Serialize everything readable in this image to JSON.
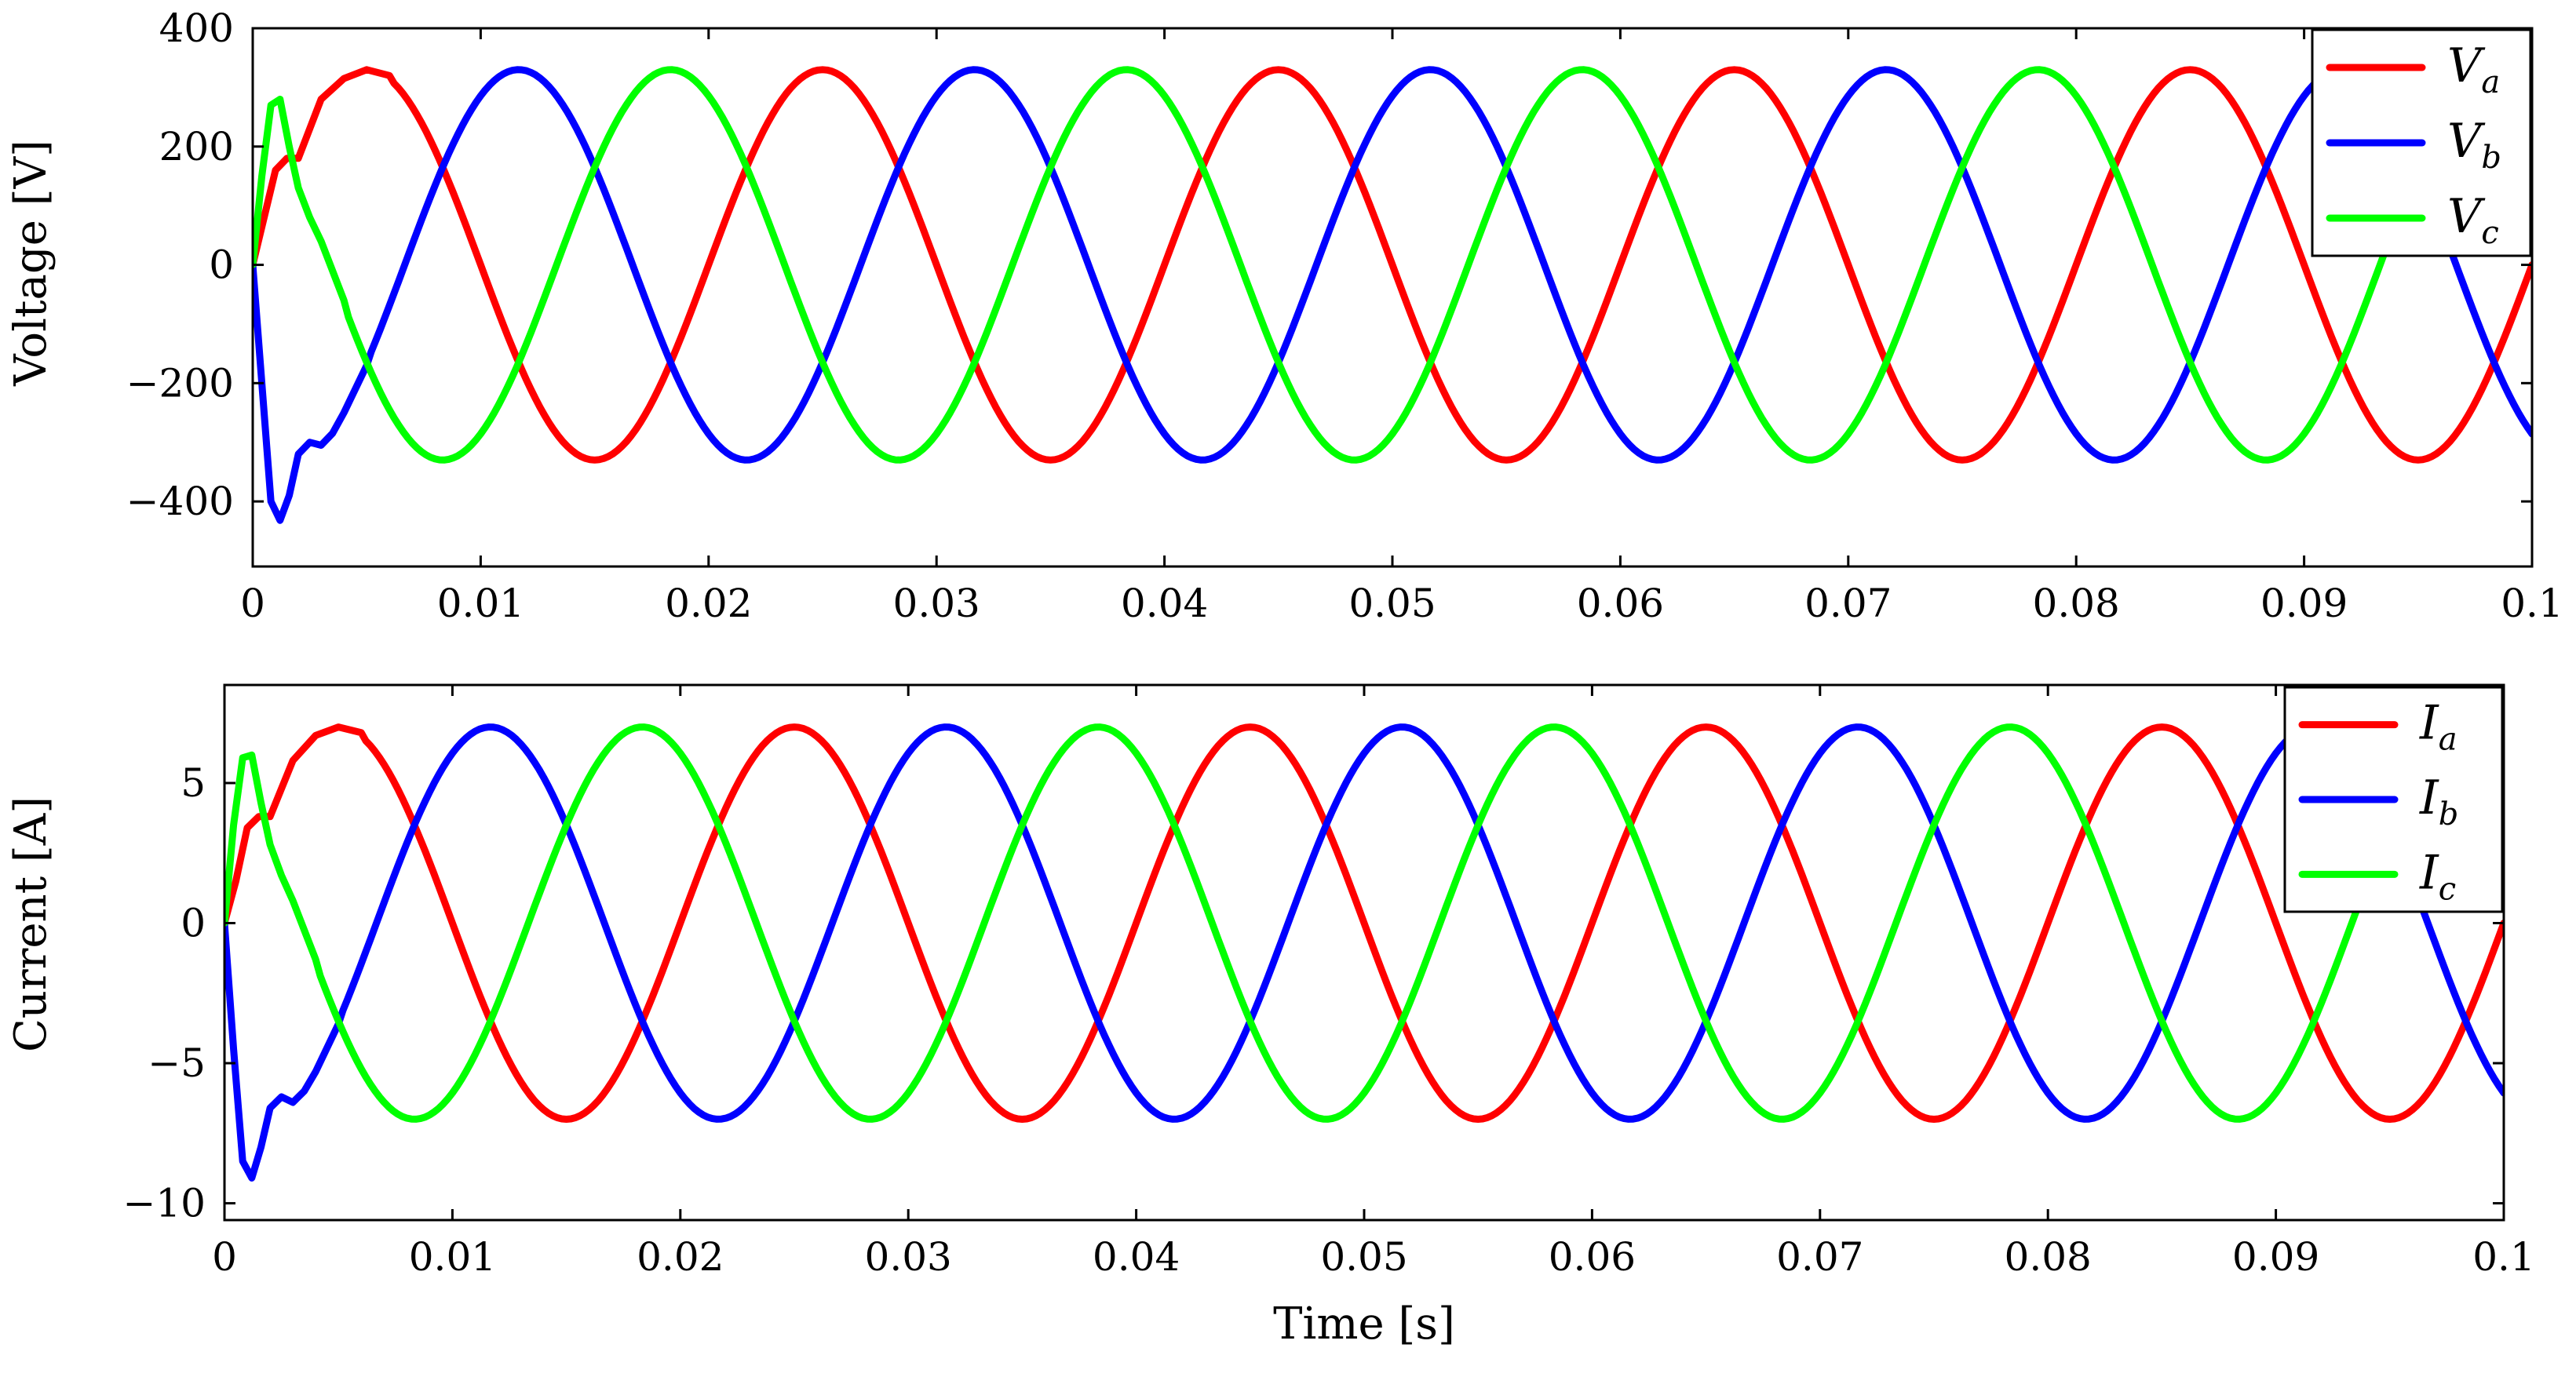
{
  "chart_data": [
    {
      "type": "line",
      "title": "",
      "xlabel": "",
      "ylabel": "Voltage [V]",
      "xlim": [
        0,
        0.1
      ],
      "ylim": [
        -510,
        400
      ],
      "xticks": [
        0,
        0.01,
        0.02,
        0.03,
        0.04,
        0.05,
        0.06,
        0.07,
        0.08,
        0.09,
        0.1
      ],
      "xtick_labels": [
        "0",
        "0.01",
        "0.02",
        "0.03",
        "0.04",
        "0.05",
        "0.06",
        "0.07",
        "0.08",
        "0.09",
        "0.1"
      ],
      "yticks": [
        -400,
        -200,
        0,
        200,
        400
      ],
      "ytick_labels": [
        "−400",
        "−200",
        "0",
        "200",
        "400"
      ],
      "grid": false,
      "legend_position": "top-right",
      "waveform": {
        "frequency_hz": 50,
        "steady_amplitude": 330,
        "phase_shift_deg": 120
      },
      "series": [
        {
          "name": "V",
          "sub": "a",
          "color": "#ff0000",
          "x": [
            0,
            0.0005,
            0.001,
            0.0015,
            0.002,
            0.003,
            0.004,
            0.005,
            0.006
          ],
          "y": [
            0,
            80,
            160,
            180,
            180,
            280,
            315,
            330,
            320
          ]
        },
        {
          "name": "V",
          "sub": "b",
          "color": "#0000ff",
          "x": [
            0,
            0.0004,
            0.0008,
            0.0012,
            0.0016,
            0.002,
            0.0025,
            0.003,
            0.0035,
            0.004,
            0.005
          ],
          "y": [
            0,
            -200,
            -400,
            -432,
            -390,
            -320,
            -300,
            -305,
            -285,
            -250,
            -170
          ]
        },
        {
          "name": "V",
          "sub": "c",
          "color": "#00ff00",
          "x": [
            0,
            0.0004,
            0.0008,
            0.0012,
            0.0016,
            0.002,
            0.0025,
            0.003,
            0.004
          ],
          "y": [
            0,
            150,
            270,
            280,
            200,
            130,
            80,
            40,
            -60
          ]
        }
      ]
    },
    {
      "type": "line",
      "title": "",
      "xlabel": "Time [s]",
      "ylabel": "Current [A]",
      "xlim": [
        0,
        0.1
      ],
      "ylim": [
        -10.6,
        8.5
      ],
      "xticks": [
        0,
        0.01,
        0.02,
        0.03,
        0.04,
        0.05,
        0.06,
        0.07,
        0.08,
        0.09,
        0.1
      ],
      "xtick_labels": [
        "0",
        "0.01",
        "0.02",
        "0.03",
        "0.04",
        "0.05",
        "0.06",
        "0.07",
        "0.08",
        "0.09",
        "0.1"
      ],
      "yticks": [
        -10,
        -5,
        0,
        5
      ],
      "ytick_labels": [
        "−10",
        "−5",
        "0",
        "5"
      ],
      "grid": false,
      "legend_position": "top-right",
      "waveform": {
        "frequency_hz": 50,
        "steady_amplitude": 7,
        "phase_shift_deg": 120
      },
      "series": [
        {
          "name": "I",
          "sub": "a",
          "color": "#ff0000",
          "x": [
            0,
            0.0005,
            0.001,
            0.0015,
            0.002,
            0.003,
            0.004,
            0.005,
            0.006
          ],
          "y": [
            0,
            1.5,
            3.4,
            3.8,
            3.8,
            5.8,
            6.7,
            7.0,
            6.8
          ]
        },
        {
          "name": "I",
          "sub": "b",
          "color": "#0000ff",
          "x": [
            0,
            0.0004,
            0.0008,
            0.0012,
            0.0016,
            0.002,
            0.0025,
            0.003,
            0.0035,
            0.004,
            0.005
          ],
          "y": [
            0,
            -4.5,
            -8.5,
            -9.1,
            -8.0,
            -6.6,
            -6.2,
            -6.4,
            -6.0,
            -5.3,
            -3.6
          ]
        },
        {
          "name": "I",
          "sub": "c",
          "color": "#00ff00",
          "x": [
            0,
            0.0004,
            0.0008,
            0.0012,
            0.0016,
            0.002,
            0.0025,
            0.003,
            0.004
          ],
          "y": [
            0,
            3.5,
            5.9,
            6.0,
            4.3,
            2.8,
            1.7,
            0.8,
            -1.3
          ]
        }
      ]
    }
  ]
}
